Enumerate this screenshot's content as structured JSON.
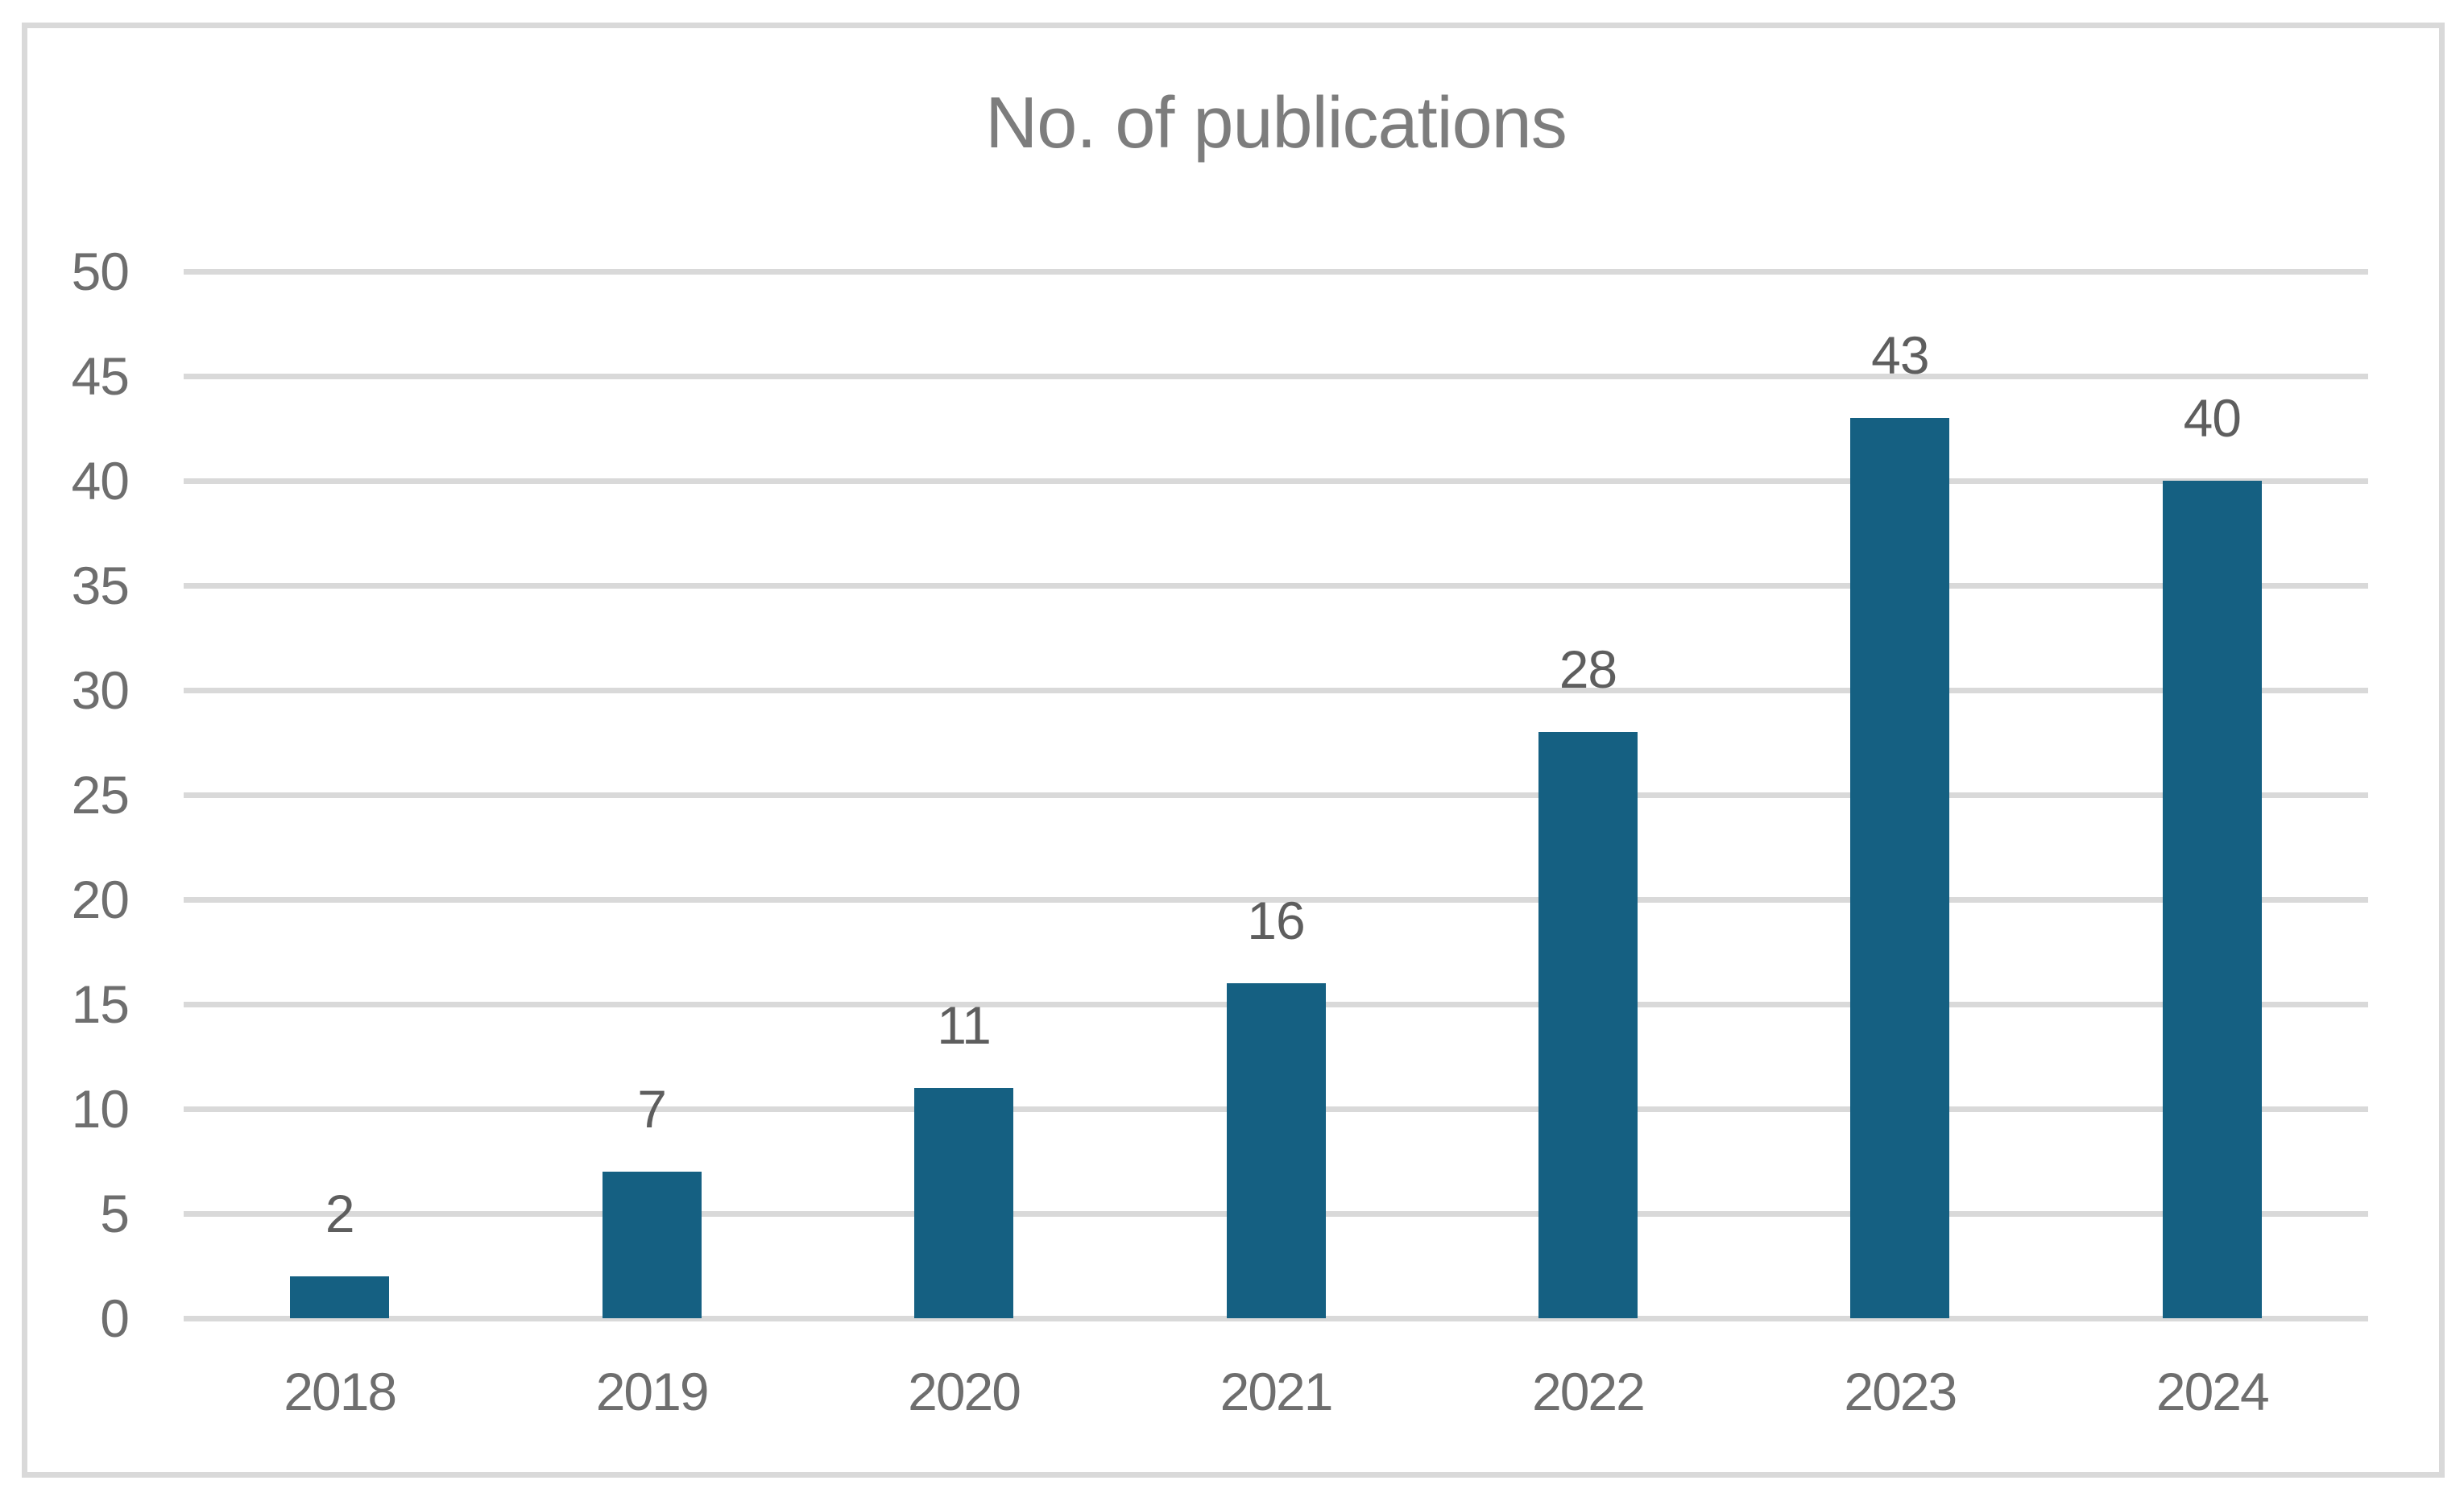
{
  "chart_data": {
    "type": "bar",
    "title": "No. of publications",
    "categories": [
      "2018",
      "2019",
      "2020",
      "2021",
      "2022",
      "2023",
      "2024"
    ],
    "values": [
      2,
      7,
      11,
      16,
      28,
      43,
      40
    ],
    "xlabel": "",
    "ylabel": "",
    "ylim": [
      0,
      50
    ],
    "yticks": [
      0,
      5,
      10,
      15,
      20,
      25,
      30,
      35,
      40,
      45,
      50
    ],
    "grid": "horizontal",
    "legend": "none",
    "data_labels_position": "outside-end",
    "colors": {
      "bar": "#156082",
      "gridline": "#d9d9d9",
      "frame_border": "#d9d9d9",
      "title_text": "#7d7d7d",
      "axis_text": "#6e6e6e",
      "data_label_text": "#5e5e5e",
      "background": "#ffffff"
    }
  }
}
